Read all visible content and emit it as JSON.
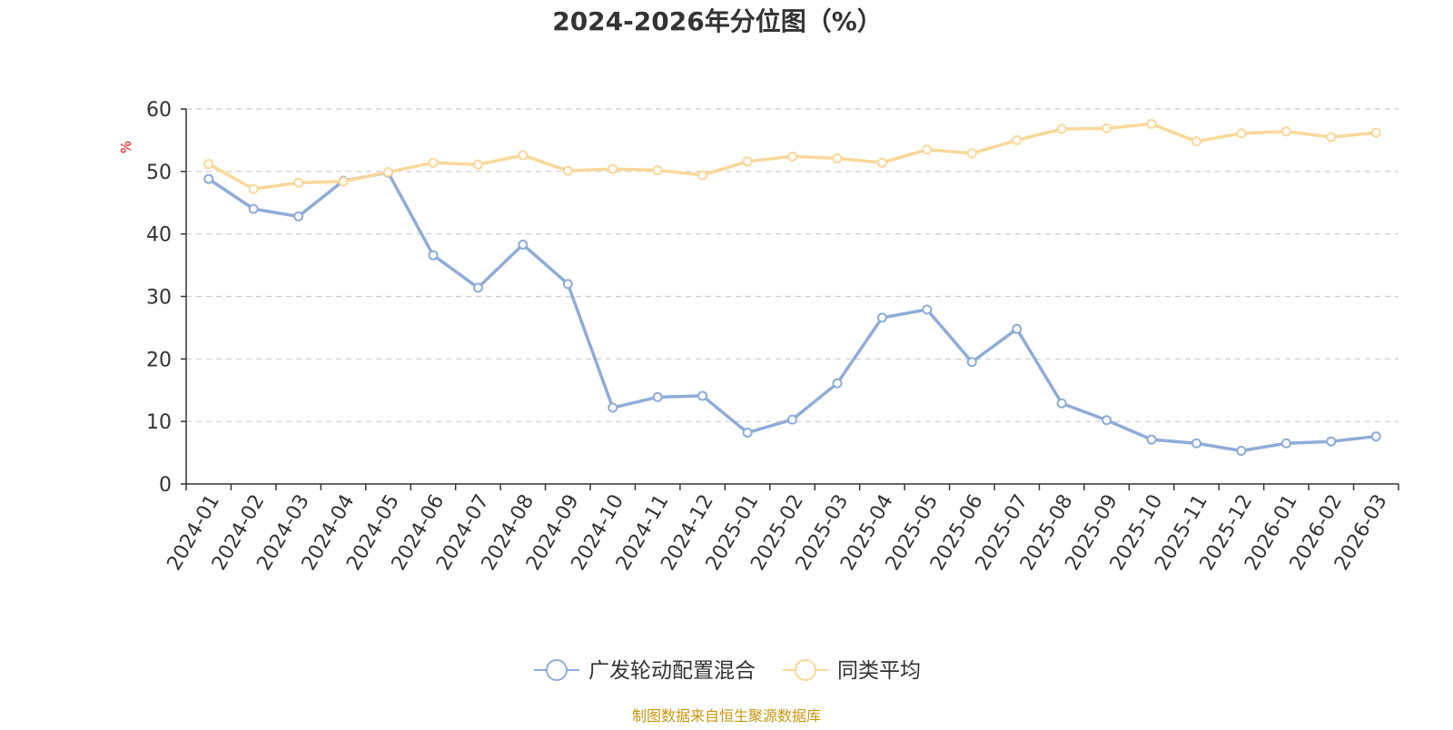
{
  "chart_data": {
    "type": "line",
    "title": "2024-2026年分位图（%）",
    "ylabel": "%",
    "xlabel": "",
    "ylim": [
      0,
      60
    ],
    "yticks": [
      0,
      10,
      20,
      30,
      40,
      50,
      60
    ],
    "grid": true,
    "legend_position": "bottom",
    "categories": [
      "2024-01",
      "2024-02",
      "2024-03",
      "2024-04",
      "2024-05",
      "2024-06",
      "2024-07",
      "2024-08",
      "2024-09",
      "2024-10",
      "2024-11",
      "2024-12",
      "2025-01",
      "2025-02",
      "2025-03",
      "2025-04",
      "2025-05",
      "2025-06",
      "2025-07",
      "2025-08",
      "2025-09",
      "2025-10",
      "2025-11",
      "2025-12",
      "2026-01",
      "2026-02",
      "2026-03"
    ],
    "series": [
      {
        "name": "广发轮动配置混合",
        "color": "#8eacd8",
        "values": [
          48.8,
          44.0,
          42.8,
          48.5,
          49.8,
          36.6,
          31.4,
          38.3,
          32.0,
          12.2,
          13.9,
          14.1,
          8.2,
          10.3,
          16.1,
          26.6,
          27.9,
          19.5,
          24.8,
          12.9,
          10.2,
          7.1,
          6.5,
          5.3,
          6.5,
          6.8,
          7.6
        ]
      },
      {
        "name": "同类平均",
        "color": "#fad899",
        "values": [
          51.2,
          47.2,
          48.2,
          48.4,
          49.9,
          51.4,
          51.1,
          52.6,
          50.1,
          50.4,
          50.2,
          49.4,
          51.6,
          52.4,
          52.1,
          51.4,
          53.5,
          52.9,
          55.0,
          56.8,
          56.9,
          57.6,
          54.8,
          56.1,
          56.4,
          55.5,
          56.2
        ]
      }
    ],
    "source_note": "制图数据来自恒生聚源数据库",
    "colors": {
      "title": "#333333",
      "axis": "#333333",
      "grid": "#cccccc",
      "ylabel": "#ff0000",
      "source_note": "#c8960f"
    }
  }
}
